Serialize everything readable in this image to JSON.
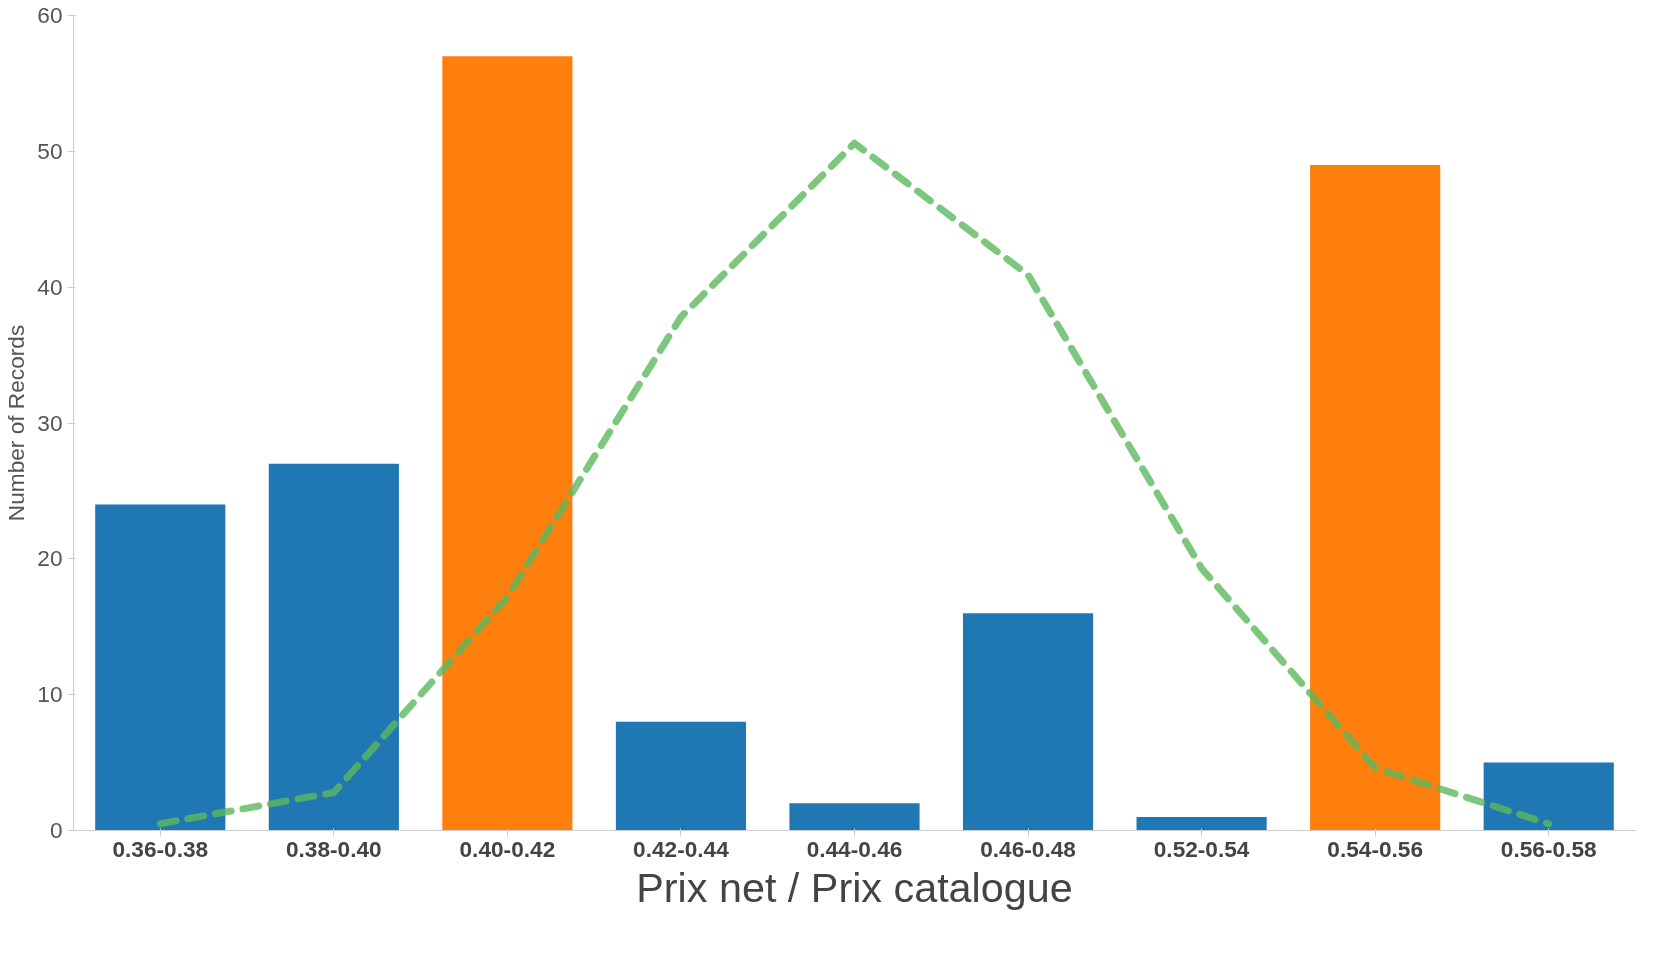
{
  "chart_data": {
    "type": "bar",
    "xlabel": "Prix net / Prix catalogue",
    "ylabel": "Number of Records",
    "categories": [
      "0.36-0.38",
      "0.38-0.40",
      "0.40-0.42",
      "0.42-0.44",
      "0.44-0.46",
      "0.46-0.48",
      "0.52-0.54",
      "0.54-0.56",
      "0.56-0.58"
    ],
    "series": [
      {
        "values": [
          24,
          27,
          57,
          8,
          2,
          16,
          1,
          49,
          5
        ],
        "colors": [
          "#1f77b4",
          "#1f77b4",
          "#ff7f0e",
          "#1f77b4",
          "#1f77b4",
          "#1f77b4",
          "#1f77b4",
          "#ff7f0e",
          "#1f77b4"
        ]
      },
      {
        "type": "line",
        "color": "#5cb85c",
        "line_style": "dashed",
        "values": [
          0.5,
          2.8,
          17.2,
          37.8,
          50.6,
          40.9,
          19.3,
          4.6,
          0.5
        ]
      }
    ],
    "ylim": [
      0,
      60
    ],
    "yticks": [
      0,
      10,
      20,
      30,
      40,
      50,
      60
    ],
    "grid": false
  }
}
